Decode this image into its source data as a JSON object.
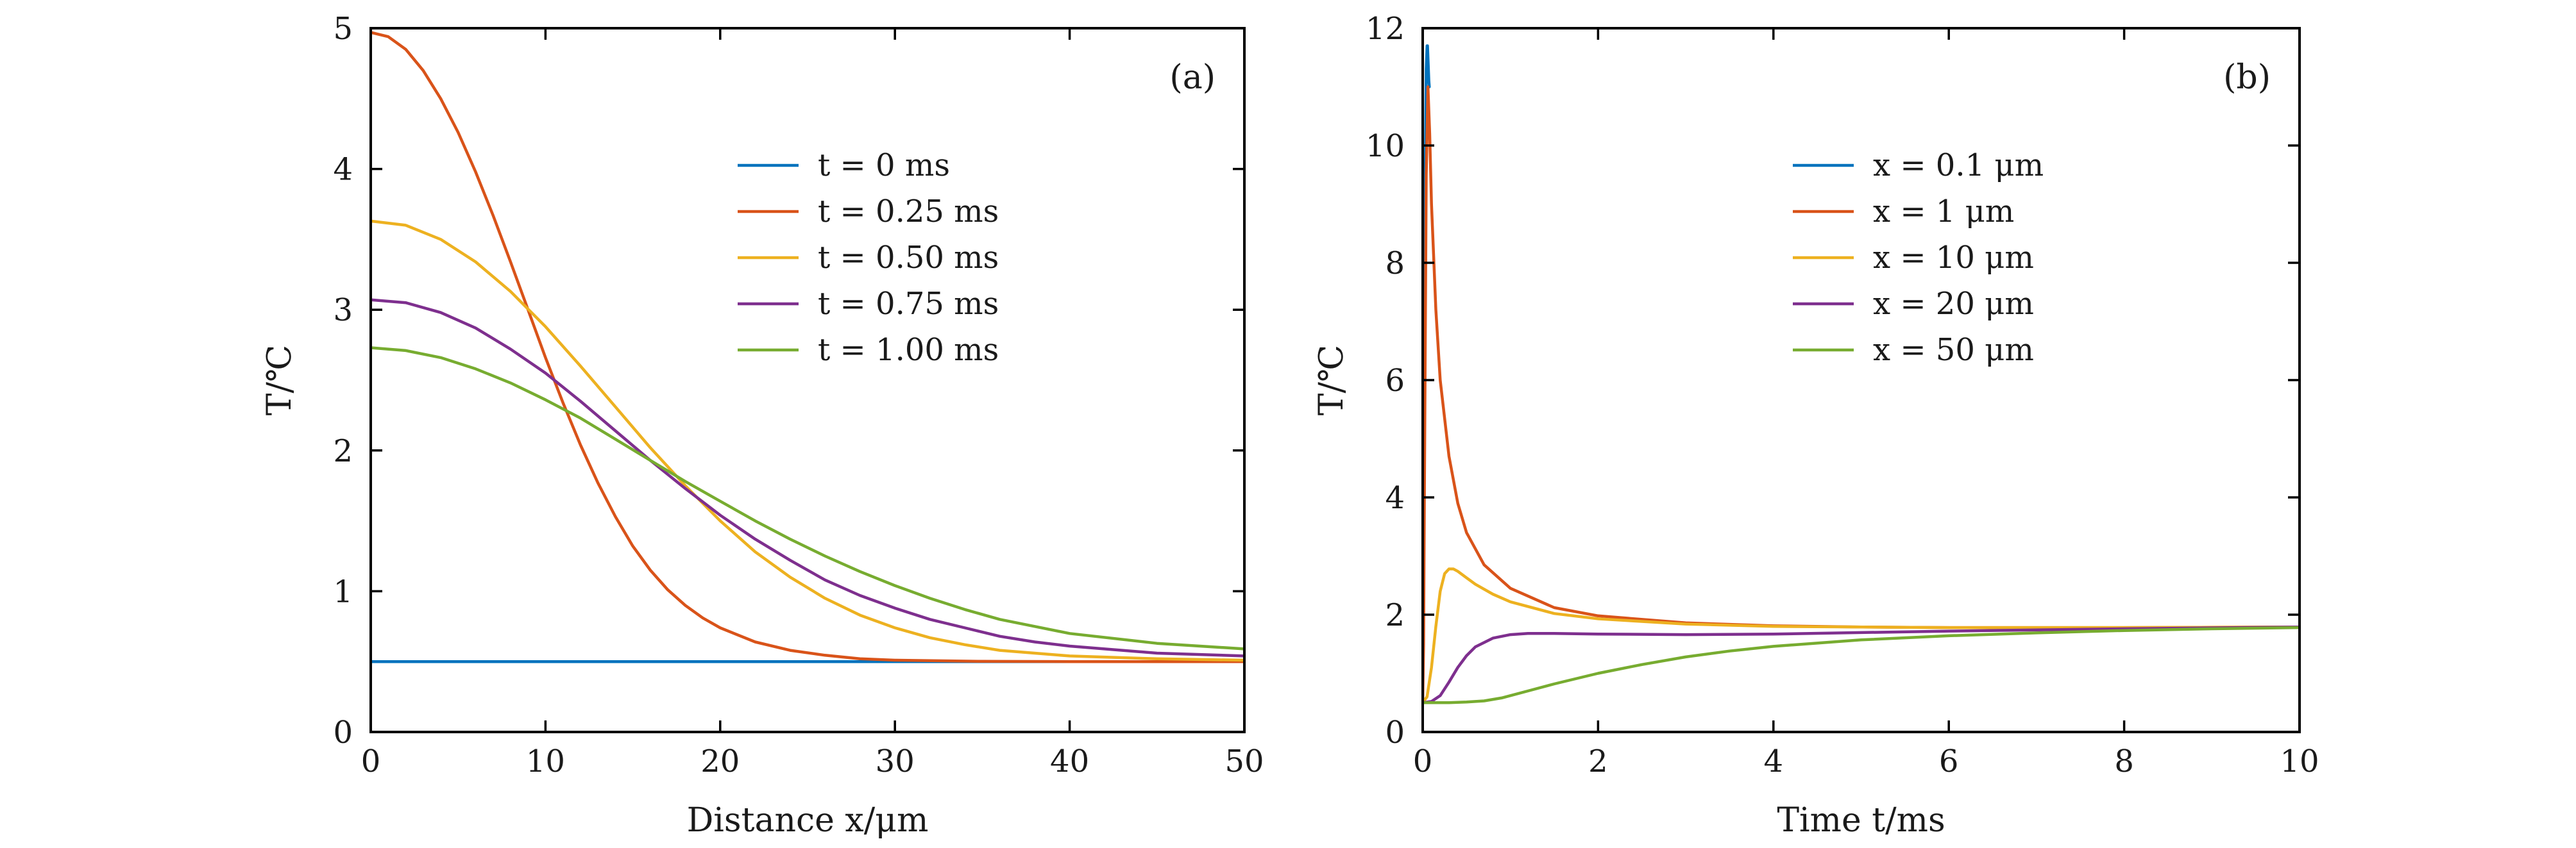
{
  "chart_data": [
    {
      "type": "line",
      "panel_label": "(a)",
      "xlabel": "Distance x/μm",
      "ylabel": "T/℃",
      "xlim": [
        0,
        50
      ],
      "ylim": [
        0,
        5
      ],
      "xticks": [
        "0",
        "10",
        "20",
        "30",
        "40",
        "50"
      ],
      "yticks": [
        "0",
        "1",
        "2",
        "3",
        "4",
        "5"
      ],
      "legend_position": "upper-middle",
      "series": [
        {
          "name": "t = 0 ms",
          "color": "#0072BD",
          "x": [
            0,
            50
          ],
          "y": [
            0.5,
            0.5
          ]
        },
        {
          "name": "t = 0.25 ms",
          "color": "#D95319",
          "x": [
            0,
            1,
            2,
            3,
            4,
            5,
            6,
            7,
            8,
            9,
            10,
            11,
            12,
            13,
            14,
            15,
            16,
            17,
            18,
            19,
            20,
            22,
            24,
            26,
            28,
            30,
            35,
            40,
            45,
            50
          ],
          "y": [
            4.97,
            4.94,
            4.85,
            4.7,
            4.5,
            4.26,
            3.98,
            3.67,
            3.34,
            3.0,
            2.66,
            2.34,
            2.04,
            1.77,
            1.53,
            1.32,
            1.15,
            1.01,
            0.9,
            0.81,
            0.74,
            0.64,
            0.58,
            0.545,
            0.52,
            0.51,
            0.502,
            0.5,
            0.5,
            0.5
          ]
        },
        {
          "name": "t = 0.50 ms",
          "color": "#EDB120",
          "x": [
            0,
            2,
            4,
            6,
            8,
            10,
            12,
            14,
            16,
            18,
            20,
            22,
            24,
            26,
            28,
            30,
            32,
            34,
            36,
            38,
            40,
            45,
            50
          ],
          "y": [
            3.63,
            3.6,
            3.5,
            3.34,
            3.13,
            2.88,
            2.6,
            2.31,
            2.02,
            1.75,
            1.5,
            1.28,
            1.1,
            0.95,
            0.83,
            0.74,
            0.67,
            0.62,
            0.58,
            0.56,
            0.54,
            0.52,
            0.51
          ]
        },
        {
          "name": "t = 0.75 ms",
          "color": "#7E2F8E",
          "x": [
            0,
            2,
            4,
            6,
            8,
            10,
            12,
            14,
            16,
            18,
            20,
            22,
            24,
            26,
            28,
            30,
            32,
            34,
            36,
            38,
            40,
            45,
            50
          ],
          "y": [
            3.07,
            3.05,
            2.98,
            2.87,
            2.72,
            2.55,
            2.35,
            2.14,
            1.93,
            1.73,
            1.54,
            1.37,
            1.22,
            1.08,
            0.97,
            0.88,
            0.8,
            0.74,
            0.68,
            0.64,
            0.61,
            0.56,
            0.54
          ]
        },
        {
          "name": "t = 1.00 ms",
          "color": "#77AC30",
          "x": [
            0,
            2,
            4,
            6,
            8,
            10,
            12,
            14,
            16,
            18,
            20,
            22,
            24,
            26,
            28,
            30,
            32,
            34,
            36,
            38,
            40,
            45,
            50
          ],
          "y": [
            2.73,
            2.71,
            2.66,
            2.58,
            2.48,
            2.36,
            2.23,
            2.08,
            1.93,
            1.78,
            1.64,
            1.5,
            1.37,
            1.25,
            1.14,
            1.04,
            0.95,
            0.87,
            0.8,
            0.75,
            0.7,
            0.63,
            0.59
          ]
        }
      ]
    },
    {
      "type": "line",
      "panel_label": "(b)",
      "xlabel": "Time t/ms",
      "ylabel": "T/℃",
      "xlim": [
        0,
        10
      ],
      "ylim": [
        0,
        12
      ],
      "xticks": [
        "0",
        "2",
        "4",
        "6",
        "8",
        "10"
      ],
      "yticks": [
        "0",
        "2",
        "4",
        "6",
        "8",
        "10",
        "12"
      ],
      "legend_position": "upper-middle",
      "series": [
        {
          "name": "x = 0.1 μm",
          "color": "#0072BD",
          "x": [
            0,
            0.01,
            0.02,
            0.03,
            0.04,
            0.05,
            0.055,
            0.06,
            0.065,
            0.07,
            0.075
          ],
          "y": [
            0.5,
            2.5,
            6.0,
            9.5,
            11.3,
            11.7,
            11.7,
            11.5,
            11.3,
            11.1,
            11.0
          ]
        },
        {
          "name": "x = 1 μm",
          "color": "#D95319",
          "x": [
            0,
            0.01,
            0.02,
            0.04,
            0.06,
            0.08,
            0.1,
            0.15,
            0.2,
            0.3,
            0.4,
            0.5,
            0.7,
            1.0,
            1.5,
            2.0,
            3.0,
            4.0,
            5.0,
            6.0,
            8.0,
            10.0
          ],
          "y": [
            0.5,
            1.5,
            4.2,
            9.5,
            11.0,
            10.2,
            9.0,
            7.2,
            6.0,
            4.7,
            3.9,
            3.4,
            2.85,
            2.45,
            2.12,
            1.98,
            1.86,
            1.81,
            1.79,
            1.78,
            1.78,
            1.79
          ]
        },
        {
          "name": "x = 10 μm",
          "color": "#EDB120",
          "x": [
            0,
            0.05,
            0.1,
            0.15,
            0.2,
            0.25,
            0.3,
            0.35,
            0.4,
            0.5,
            0.6,
            0.8,
            1.0,
            1.5,
            2.0,
            3.0,
            4.0,
            6.0,
            8.0,
            10.0
          ],
          "y": [
            0.5,
            0.6,
            1.1,
            1.8,
            2.4,
            2.7,
            2.78,
            2.78,
            2.74,
            2.63,
            2.52,
            2.35,
            2.22,
            2.02,
            1.93,
            1.84,
            1.8,
            1.78,
            1.78,
            1.79
          ]
        },
        {
          "name": "x = 20 μm",
          "color": "#7E2F8E",
          "x": [
            0,
            0.1,
            0.2,
            0.3,
            0.4,
            0.5,
            0.6,
            0.8,
            1.0,
            1.2,
            1.5,
            2.0,
            3.0,
            4.0,
            6.0,
            8.0,
            10.0
          ],
          "y": [
            0.5,
            0.52,
            0.62,
            0.85,
            1.1,
            1.3,
            1.45,
            1.6,
            1.66,
            1.68,
            1.68,
            1.67,
            1.66,
            1.67,
            1.72,
            1.76,
            1.79
          ]
        },
        {
          "name": "x = 50 μm",
          "color": "#77AC30",
          "x": [
            0,
            0.3,
            0.5,
            0.7,
            0.9,
            1.2,
            1.5,
            2.0,
            2.5,
            3.0,
            3.5,
            4.0,
            5.0,
            6.0,
            7.0,
            8.0,
            9.0,
            10.0
          ],
          "y": [
            0.5,
            0.5,
            0.51,
            0.53,
            0.58,
            0.7,
            0.82,
            1.0,
            1.15,
            1.28,
            1.38,
            1.46,
            1.57,
            1.64,
            1.69,
            1.73,
            1.76,
            1.78
          ]
        }
      ]
    }
  ]
}
